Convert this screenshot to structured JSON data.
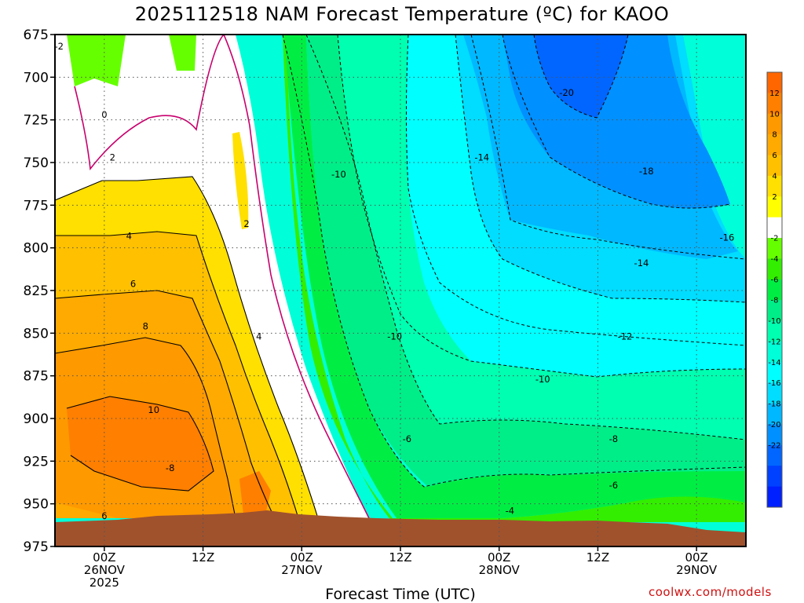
{
  "chart_data": {
    "type": "heatmap",
    "title": "2025112518 NAM Forecast Temperature (ºC) for KAOO",
    "xlabel": "Forecast Time (UTC)",
    "ylabel": "",
    "y_axis": {
      "ticks": [
        "675",
        "700",
        "725",
        "750",
        "775",
        "800",
        "825",
        "850",
        "875",
        "900",
        "925",
        "950",
        "975"
      ],
      "range": [
        675,
        975
      ],
      "inverted": true
    },
    "x_axis": {
      "ticks": [
        {
          "line1": "00Z",
          "line2": "26NOV",
          "line3": "2025",
          "hour": 6
        },
        {
          "line1": "12Z",
          "line2": "",
          "line3": "",
          "hour": 18
        },
        {
          "line1": "00Z",
          "line2": "27NOV",
          "line3": "",
          "hour": 30
        },
        {
          "line1": "12Z",
          "line2": "",
          "line3": "",
          "hour": 42
        },
        {
          "line1": "00Z",
          "line2": "28NOV",
          "line3": "",
          "hour": 54
        },
        {
          "line1": "12Z",
          "line2": "",
          "line3": "",
          "hour": 66
        },
        {
          "line1": "00Z",
          "line2": "29NOV",
          "line3": "",
          "hour": 78
        }
      ],
      "range_hours": [
        0,
        84
      ]
    },
    "grid": true,
    "colorbar": {
      "labels": [
        "12",
        "10",
        "8",
        "6",
        "4",
        "2",
        "-2",
        "-4",
        "-6",
        "-8",
        "-10",
        "-12",
        "-14",
        "-16",
        "-18",
        "-20",
        "-22"
      ],
      "colors": [
        "#ff6600",
        "#ff7f00",
        "#ff9900",
        "#ffaa00",
        "#ffc000",
        "#ffe000",
        "#ffff00",
        "#ffffff",
        "#66ff00",
        "#33ee00",
        "#00ee44",
        "#00ee88",
        "#00ffb0",
        "#00ffd8",
        "#00ffff",
        "#00ddff",
        "#00b8ff",
        "#0090ff",
        "#0066ff",
        "#0040ff",
        "#0020ff"
      ]
    },
    "contour_labels": [
      {
        "text": "-2",
        "hour": 0.5,
        "p": 682
      },
      {
        "text": "0",
        "hour": 6,
        "p": 722
      },
      {
        "text": "2",
        "hour": 7,
        "p": 747
      },
      {
        "text": "4",
        "hour": 9,
        "p": 793
      },
      {
        "text": "6",
        "hour": 9.5,
        "p": 821
      },
      {
        "text": "8",
        "hour": 11,
        "p": 846
      },
      {
        "text": "10",
        "hour": 12,
        "p": 895
      },
      {
        "text": "-8",
        "hour": 14,
        "p": 929
      },
      {
        "text": "6",
        "hour": 6,
        "p": 957
      },
      {
        "text": "2",
        "hour": 23.3,
        "p": 786
      },
      {
        "text": "4",
        "hour": 24.8,
        "p": 852
      },
      {
        "text": "-10",
        "hour": 34.5,
        "p": 757
      },
      {
        "text": "-10",
        "hour": 41.3,
        "p": 852
      },
      {
        "text": "-6",
        "hour": 42.8,
        "p": 912
      },
      {
        "text": "-4",
        "hour": 55.3,
        "p": 954
      },
      {
        "text": "-14",
        "hour": 51.9,
        "p": 747
      },
      {
        "text": "-10",
        "hour": 59.3,
        "p": 877
      },
      {
        "text": "-12",
        "hour": 69.3,
        "p": 852
      },
      {
        "text": "-8",
        "hour": 67.9,
        "p": 912
      },
      {
        "text": "-6",
        "hour": 67.9,
        "p": 939
      },
      {
        "text": "-14",
        "hour": 71.3,
        "p": 809
      },
      {
        "text": "-20",
        "hour": 62.2,
        "p": 709
      },
      {
        "text": "-18",
        "hour": 71.9,
        "p": 755
      },
      {
        "text": "-16",
        "hour": 81.7,
        "p": 794
      }
    ]
  },
  "footer": {
    "credit": "coolwx.com/models"
  }
}
